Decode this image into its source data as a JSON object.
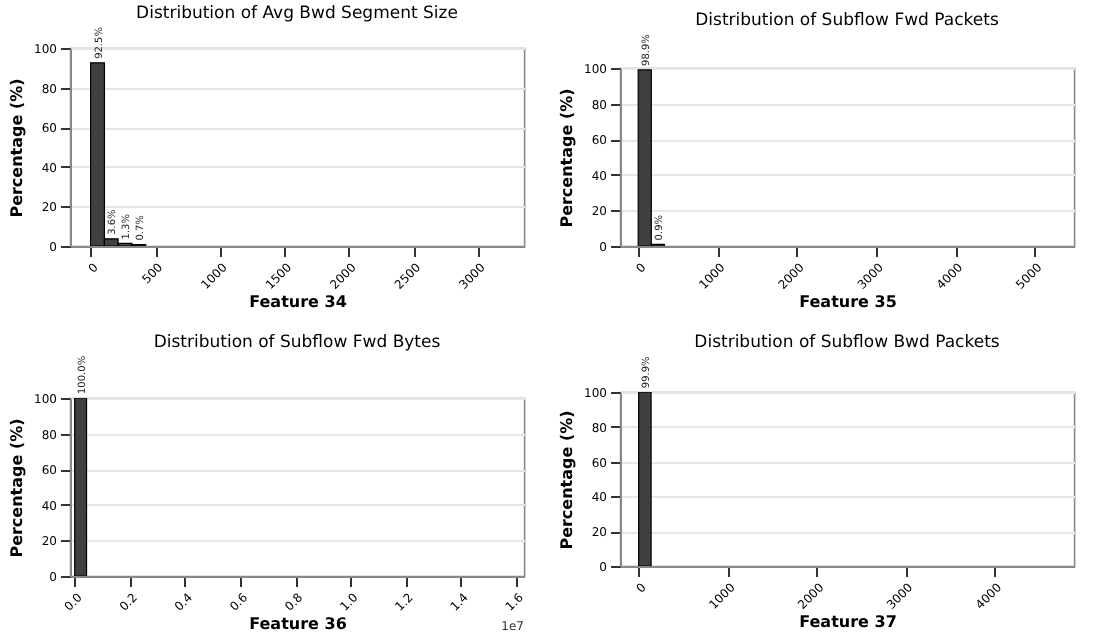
{
  "chart_data": [
    {
      "type": "histogram",
      "title": "Distribution of Avg Bwd Segment Size",
      "xlabel": "Feature 34",
      "ylabel": "Percentage (%)",
      "bins": [
        0,
        107,
        213,
        320,
        427
      ],
      "values": [
        92.5,
        3.6,
        1.3,
        0.7
      ],
      "value_labels": [
        "92.5%",
        "3.6%",
        "1.3%",
        "0.7%"
      ],
      "color": "#404040",
      "xlim": [
        -160,
        3360
      ],
      "xticks": [
        0,
        500,
        1000,
        1500,
        2000,
        2500,
        3000
      ],
      "ylim": [
        0,
        100
      ],
      "yticks": [
        0,
        20,
        40,
        60,
        80,
        100
      ],
      "grid": "y"
    },
    {
      "type": "histogram",
      "title": "Distribution of Subflow Fwd Packets",
      "xlabel": "Feature 35",
      "ylabel": "Percentage (%)",
      "bins": [
        0,
        165,
        330
      ],
      "values": [
        98.9,
        0.9
      ],
      "value_labels": [
        "98.9%",
        "0.9%"
      ],
      "color": "#404040",
      "xlim": [
        -230,
        5500
      ],
      "xticks": [
        0,
        1000,
        2000,
        3000,
        4000,
        5000
      ],
      "ylim": [
        0,
        100
      ],
      "yticks": [
        0,
        20,
        40,
        60,
        80,
        100
      ],
      "grid": "y"
    },
    {
      "type": "histogram",
      "title": "Distribution of Subflow Fwd Bytes",
      "xlabel": "Feature 36",
      "ylabel": "Percentage (%)",
      "bins": [
        0,
        0.043
      ],
      "values": [
        100
      ],
      "value_labels": [
        "100.0%"
      ],
      "color": "#404040",
      "xlim": [
        -0.017,
        1.63
      ],
      "xticks": [
        {
          "value": 0,
          "label": "0.0"
        },
        0.2,
        0.4,
        0.6,
        0.8,
        {
          "value": 1,
          "label": "1.0"
        },
        1.2,
        1.4,
        1.6
      ],
      "ylim": [
        0,
        100
      ],
      "yticks": [
        0,
        20,
        40,
        60,
        80,
        100
      ],
      "grid": "y",
      "annotations": [
        "1e7"
      ]
    },
    {
      "type": "histogram",
      "title": "Distribution of Subflow Bwd Packets",
      "xlabel": "Feature 37",
      "ylabel": "Percentage (%)",
      "bins": [
        0,
        140
      ],
      "values": [
        99.9
      ],
      "value_labels": [
        "99.9%"
      ],
      "color": "#404040",
      "xlim": [
        -210,
        4900
      ],
      "xticks": [
        0,
        1000,
        2000,
        3000,
        4000
      ],
      "ylim": [
        0,
        100
      ],
      "yticks": [
        0,
        20,
        40,
        60,
        80,
        100
      ],
      "grid": "y"
    }
  ]
}
